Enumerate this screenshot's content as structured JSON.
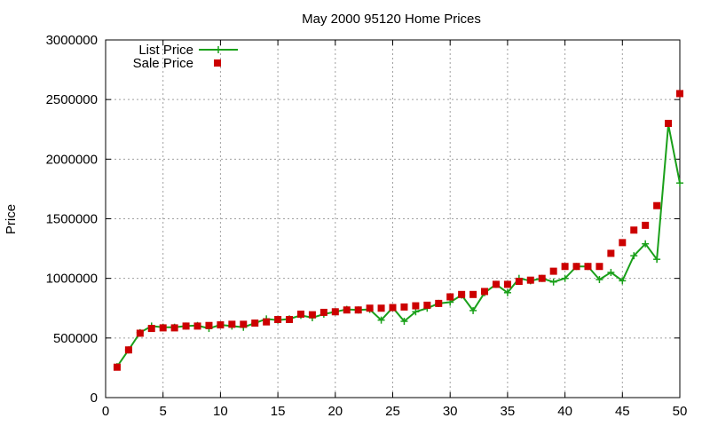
{
  "colors": {
    "list_price": "#1aa01a",
    "sale_price": "#cc0000",
    "grid": "#a0a0a0",
    "axis": "#000000"
  },
  "chart_data": {
    "type": "line",
    "title": "May 2000 95120 Home Prices",
    "xlabel": "",
    "ylabel": "Price",
    "xlim": [
      0,
      50
    ],
    "ylim": [
      0,
      3000000
    ],
    "x_ticks": [
      0,
      5,
      10,
      15,
      20,
      25,
      30,
      35,
      40,
      45,
      50
    ],
    "y_ticks": [
      0,
      500000,
      1000000,
      1500000,
      2000000,
      2500000,
      3000000
    ],
    "grid": true,
    "legend_position": "top-left",
    "series": [
      {
        "name": "List Price",
        "style": "lines+points",
        "marker": "plus",
        "x": [
          1,
          2,
          3,
          4,
          5,
          6,
          7,
          8,
          9,
          10,
          11,
          12,
          13,
          14,
          15,
          16,
          17,
          18,
          19,
          20,
          21,
          22,
          23,
          24,
          25,
          26,
          27,
          28,
          29,
          30,
          31,
          32,
          33,
          34,
          35,
          36,
          37,
          38,
          39,
          40,
          41,
          42,
          43,
          44,
          45,
          46,
          47,
          48,
          49,
          50
        ],
        "y": [
          260000,
          400000,
          545000,
          600000,
          590000,
          590000,
          600000,
          605000,
          580000,
          610000,
          600000,
          590000,
          625000,
          660000,
          650000,
          660000,
          690000,
          670000,
          700000,
          720000,
          740000,
          735000,
          740000,
          650000,
          755000,
          640000,
          720000,
          750000,
          790000,
          800000,
          860000,
          730000,
          880000,
          950000,
          880000,
          1000000,
          980000,
          1000000,
          970000,
          1000000,
          1100000,
          1100000,
          990000,
          1050000,
          980000,
          1190000,
          1290000,
          1160000,
          2290000,
          1800000
        ]
      },
      {
        "name": "Sale Price",
        "style": "points",
        "marker": "square",
        "x": [
          1,
          2,
          3,
          4,
          5,
          6,
          7,
          8,
          9,
          10,
          11,
          12,
          13,
          14,
          15,
          16,
          17,
          18,
          19,
          20,
          21,
          22,
          23,
          24,
          25,
          26,
          27,
          28,
          29,
          30,
          31,
          32,
          33,
          34,
          35,
          36,
          37,
          38,
          39,
          40,
          41,
          42,
          43,
          44,
          45,
          46,
          47,
          48,
          49,
          50
        ],
        "y": [
          255000,
          400000,
          540000,
          580000,
          585000,
          585000,
          600000,
          600000,
          605000,
          610000,
          615000,
          615000,
          625000,
          635000,
          655000,
          655000,
          700000,
          695000,
          715000,
          720000,
          735000,
          735000,
          750000,
          750000,
          755000,
          760000,
          770000,
          775000,
          790000,
          845000,
          865000,
          865000,
          890000,
          950000,
          950000,
          975000,
          985000,
          1000000,
          1060000,
          1100000,
          1100000,
          1100000,
          1100000,
          1210000,
          1300000,
          1405000,
          1445000,
          1610000,
          2300000,
          2550000
        ]
      }
    ]
  }
}
